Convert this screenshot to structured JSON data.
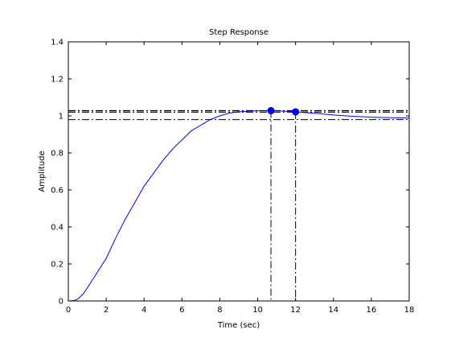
{
  "chart_data": {
    "type": "line",
    "title": "Step Response",
    "xlabel": "Time (sec)",
    "ylabel": "Amplitude",
    "xlim": [
      0,
      18
    ],
    "ylim": [
      0,
      1.4
    ],
    "xticks": [
      0,
      2,
      4,
      6,
      8,
      10,
      12,
      14,
      16,
      18
    ],
    "yticks": [
      0,
      0.2,
      0.4,
      0.6,
      0.8,
      1,
      1.2,
      1.4
    ],
    "xtick_labels": [
      "0",
      "2",
      "4",
      "6",
      "8",
      "10",
      "12",
      "14",
      "16",
      "18"
    ],
    "ytick_labels": [
      "0",
      "0.2",
      "0.4",
      "0.6",
      "0.8",
      "1",
      "1.2",
      "1.4"
    ],
    "grid": false,
    "series": [
      {
        "color": "#0000ff",
        "x": [
          0,
          0.3,
          0.5,
          0.8,
          1,
          1.5,
          2,
          2.5,
          3,
          3.5,
          4,
          4.5,
          5,
          5.5,
          6,
          6.5,
          7,
          7.5,
          8,
          8.5,
          9,
          9.5,
          10,
          10.5,
          10.7,
          11,
          11.5,
          12,
          12.5,
          13,
          14,
          15,
          16,
          17,
          18
        ],
        "y": [
          0,
          0.002,
          0.01,
          0.04,
          0.07,
          0.15,
          0.23,
          0.34,
          0.44,
          0.53,
          0.62,
          0.69,
          0.76,
          0.82,
          0.87,
          0.92,
          0.95,
          0.98,
          1.0,
          1.015,
          1.022,
          1.025,
          1.027,
          1.028,
          1.028,
          1.027,
          1.025,
          1.022,
          1.018,
          1.014,
          1.005,
          0.998,
          0.993,
          0.99,
          0.988
        ]
      }
    ],
    "reference_lines": {
      "horizontal": [
        1.028,
        1.02,
        0.98
      ],
      "vertical": [
        10.7,
        12.0
      ]
    },
    "markers": [
      {
        "x": 10.7,
        "y": 1.028,
        "color": "#0000ff"
      },
      {
        "x": 12.0,
        "y": 1.022,
        "color": "#0000ff"
      }
    ]
  }
}
